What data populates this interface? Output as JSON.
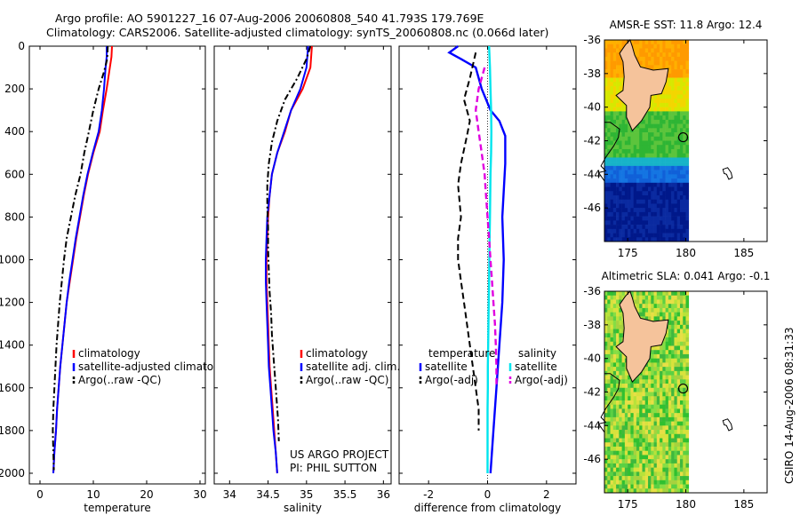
{
  "header": {
    "line1": "Argo profile: AO 5901227_16 07-Aug-2006 20060808_540 41.793S 179.769E",
    "line2": "Climatology: CARS2006. Satellite-adjusted climatology: synTS_20060808.nc (0.066d later)"
  },
  "footer": {
    "project": "US ARGO PROJECT",
    "pi": "PI: PHIL SUTTON"
  },
  "side_label": "CSIRO 14-Aug-2006 08:31:33",
  "colors": {
    "climatology": "#ff0000",
    "satellite": "#0000ff",
    "argo": "#000000",
    "sat_salinity": "#00e5ee",
    "argo_salinity": "#e000e0",
    "land": "#f5c39b"
  },
  "chart_data": [
    {
      "type": "line",
      "xlabel": "temperature",
      "xlim": [
        -2,
        31
      ],
      "ylim": [
        0,
        2050
      ],
      "y_reversed": true,
      "xticks": [
        0,
        10,
        20,
        30
      ],
      "yticks": [
        0,
        200,
        400,
        600,
        800,
        1000,
        1200,
        1400,
        1600,
        1800,
        2000
      ],
      "legend_location": "lower-right",
      "series": [
        {
          "name": "climatology",
          "color": "#ff0000",
          "dash": "solid",
          "points": [
            [
              13.5,
              0
            ],
            [
              13.4,
              50
            ],
            [
              13.1,
              100
            ],
            [
              12.5,
              200
            ],
            [
              11.8,
              300
            ],
            [
              11.2,
              400
            ],
            [
              10.0,
              500
            ],
            [
              9.0,
              600
            ],
            [
              8.2,
              700
            ],
            [
              7.5,
              800
            ],
            [
              6.8,
              900
            ],
            [
              6.2,
              1000
            ],
            [
              5.6,
              1100
            ],
            [
              5.0,
              1200
            ],
            [
              4.6,
              1300
            ],
            [
              4.2,
              1400
            ],
            [
              3.8,
              1500
            ],
            [
              3.5,
              1600
            ],
            [
              3.2,
              1700
            ],
            [
              3.0,
              1800
            ],
            [
              2.7,
              1900
            ],
            [
              2.5,
              2000
            ]
          ]
        },
        {
          "name": "satellite-adjusted climatology",
          "color": "#0000ff",
          "dash": "solid",
          "points": [
            [
              12.5,
              0
            ],
            [
              12.5,
              50
            ],
            [
              12.3,
              100
            ],
            [
              12.0,
              200
            ],
            [
              11.6,
              300
            ],
            [
              11.0,
              400
            ],
            [
              9.9,
              500
            ],
            [
              8.9,
              600
            ],
            [
              8.1,
              700
            ],
            [
              7.4,
              800
            ],
            [
              6.7,
              900
            ],
            [
              6.1,
              1000
            ],
            [
              5.5,
              1100
            ],
            [
              5.0,
              1200
            ],
            [
              4.6,
              1300
            ],
            [
              4.2,
              1400
            ],
            [
              3.8,
              1500
            ],
            [
              3.5,
              1600
            ],
            [
              3.2,
              1700
            ],
            [
              3.0,
              1800
            ],
            [
              2.7,
              1900
            ],
            [
              2.5,
              2000
            ]
          ]
        },
        {
          "name": "Argo(..raw -QC)",
          "color": "#000000",
          "dash": "dashdot",
          "points": [
            [
              12.7,
              0
            ],
            [
              12.6,
              60
            ],
            [
              12.0,
              120
            ],
            [
              11.0,
              200
            ],
            [
              10.0,
              300
            ],
            [
              9.0,
              420
            ],
            [
              8.3,
              500
            ],
            [
              7.6,
              600
            ],
            [
              6.6,
              700
            ],
            [
              5.8,
              800
            ],
            [
              5.0,
              900
            ],
            [
              4.5,
              1000
            ],
            [
              4.1,
              1100
            ],
            [
              3.7,
              1200
            ],
            [
              3.4,
              1300
            ],
            [
              3.1,
              1400
            ],
            [
              2.9,
              1500
            ],
            [
              2.7,
              1600
            ],
            [
              2.5,
              1700
            ],
            [
              2.4,
              1800
            ],
            [
              2.5,
              1900
            ],
            [
              2.6,
              1985
            ]
          ]
        }
      ]
    },
    {
      "type": "line",
      "xlabel": "salinity",
      "xlim": [
        33.8,
        36.1
      ],
      "ylim": [
        0,
        2050
      ],
      "y_reversed": true,
      "xticks": [
        34,
        34.5,
        35,
        35.5,
        36
      ],
      "yticks": [],
      "legend_location": "lower-right",
      "series": [
        {
          "name": "climatology",
          "color": "#ff0000",
          "dash": "solid",
          "points": [
            [
              35.07,
              0
            ],
            [
              35.05,
              100
            ],
            [
              34.95,
              200
            ],
            [
              34.8,
              300
            ],
            [
              34.72,
              400
            ],
            [
              34.62,
              500
            ],
            [
              34.55,
              600
            ],
            [
              34.52,
              700
            ],
            [
              34.5,
              800
            ],
            [
              34.49,
              900
            ],
            [
              34.48,
              1000
            ],
            [
              34.48,
              1100
            ],
            [
              34.49,
              1200
            ],
            [
              34.5,
              1300
            ],
            [
              34.51,
              1400
            ],
            [
              34.52,
              1500
            ],
            [
              34.54,
              1600
            ],
            [
              34.56,
              1700
            ],
            [
              34.58,
              1800
            ],
            [
              34.6,
              1900
            ],
            [
              34.62,
              2000
            ]
          ]
        },
        {
          "name": "satellite adj. clim.",
          "color": "#0000ff",
          "dash": "solid",
          "points": [
            [
              35.02,
              0
            ],
            [
              35.0,
              100
            ],
            [
              34.92,
              200
            ],
            [
              34.8,
              300
            ],
            [
              34.71,
              400
            ],
            [
              34.62,
              500
            ],
            [
              34.55,
              600
            ],
            [
              34.52,
              700
            ],
            [
              34.49,
              800
            ],
            [
              34.48,
              900
            ],
            [
              34.47,
              1000
            ],
            [
              34.47,
              1100
            ],
            [
              34.48,
              1200
            ],
            [
              34.49,
              1300
            ],
            [
              34.5,
              1400
            ],
            [
              34.51,
              1500
            ],
            [
              34.53,
              1600
            ],
            [
              34.55,
              1700
            ],
            [
              34.57,
              1800
            ],
            [
              34.6,
              1900
            ],
            [
              34.62,
              2000
            ]
          ]
        },
        {
          "name": "Argo(..raw -QC)",
          "color": "#000000",
          "dash": "dashdot",
          "points": [
            [
              35.05,
              0
            ],
            [
              35.0,
              60
            ],
            [
              34.88,
              150
            ],
            [
              34.72,
              250
            ],
            [
              34.62,
              350
            ],
            [
              34.55,
              450
            ],
            [
              34.51,
              550
            ],
            [
              34.49,
              650
            ],
            [
              34.49,
              750
            ],
            [
              34.5,
              850
            ],
            [
              34.5,
              950
            ],
            [
              34.51,
              1050
            ],
            [
              34.52,
              1150
            ],
            [
              34.54,
              1250
            ],
            [
              34.55,
              1350
            ],
            [
              34.57,
              1450
            ],
            [
              34.59,
              1550
            ],
            [
              34.61,
              1650
            ],
            [
              34.63,
              1750
            ],
            [
              34.64,
              1850
            ]
          ]
        }
      ]
    },
    {
      "type": "line",
      "xlabel": "difference from climatology",
      "xlim": [
        -3,
        3
      ],
      "ylim": [
        0,
        2050
      ],
      "y_reversed": true,
      "xticks": [
        -2,
        0,
        2
      ],
      "yticks": [],
      "legend_groups": [
        {
          "title": "temperature",
          "items": [
            "satellite",
            "Argo(-adj)"
          ]
        },
        {
          "title": "salinity",
          "items": [
            "satellite",
            "Argo(-adj)"
          ]
        }
      ],
      "series": [
        {
          "name": "temperature satellite",
          "color": "#0000ff",
          "dash": "solid",
          "points": [
            [
              -1.0,
              0
            ],
            [
              -1.3,
              30
            ],
            [
              -0.9,
              60
            ],
            [
              -0.4,
              100
            ],
            [
              -0.2,
              200
            ],
            [
              0.1,
              300
            ],
            [
              0.4,
              350
            ],
            [
              0.6,
              420
            ],
            [
              0.6,
              550
            ],
            [
              0.5,
              800
            ],
            [
              0.55,
              1000
            ],
            [
              0.5,
              1200
            ],
            [
              0.4,
              1400
            ],
            [
              0.3,
              1600
            ],
            [
              0.2,
              1800
            ],
            [
              0.1,
              2000
            ]
          ]
        },
        {
          "name": "temperature Argo(-adj)",
          "color": "#000000",
          "dash": "dashed",
          "points": [
            [
              -0.4,
              30
            ],
            [
              -0.6,
              150
            ],
            [
              -0.8,
              250
            ],
            [
              -0.6,
              350
            ],
            [
              -0.7,
              420
            ],
            [
              -0.9,
              550
            ],
            [
              -1.0,
              650
            ],
            [
              -0.9,
              800
            ],
            [
              -1.0,
              900
            ],
            [
              -1.0,
              1000
            ],
            [
              -0.9,
              1100
            ],
            [
              -0.8,
              1200
            ],
            [
              -0.7,
              1300
            ],
            [
              -0.6,
              1400
            ],
            [
              -0.5,
              1500
            ],
            [
              -0.4,
              1600
            ],
            [
              -0.3,
              1700
            ],
            [
              -0.3,
              1800
            ]
          ]
        },
        {
          "name": "salinity satellite",
          "color": "#00e5ee",
          "dash": "solid",
          "points": [
            [
              0.05,
              0
            ],
            [
              0.08,
              100
            ],
            [
              0.1,
              200
            ],
            [
              0.12,
              300
            ],
            [
              0.13,
              400
            ],
            [
              0.12,
              500
            ],
            [
              0.1,
              600
            ],
            [
              0.09,
              700
            ],
            [
              0.08,
              800
            ],
            [
              0.07,
              900
            ],
            [
              0.06,
              1000
            ],
            [
              0.05,
              1100
            ],
            [
              0.04,
              1200
            ],
            [
              0.03,
              1300
            ],
            [
              0.02,
              1400
            ],
            [
              0.01,
              1500
            ],
            [
              0.01,
              1600
            ],
            [
              0.0,
              1700
            ],
            [
              0.0,
              1800
            ],
            [
              0.0,
              1900
            ],
            [
              0.0,
              2000
            ]
          ]
        },
        {
          "name": "salinity Argo(-adj)",
          "color": "#e000e0",
          "dash": "dashed",
          "points": [
            [
              -0.1,
              100
            ],
            [
              -0.3,
              200
            ],
            [
              -0.4,
              300
            ],
            [
              -0.3,
              400
            ],
            [
              -0.2,
              500
            ],
            [
              -0.1,
              600
            ],
            [
              -0.05,
              700
            ],
            [
              0.0,
              800
            ],
            [
              0.05,
              900
            ],
            [
              0.1,
              1000
            ],
            [
              0.15,
              1100
            ],
            [
              0.2,
              1200
            ],
            [
              0.25,
              1300
            ],
            [
              0.28,
              1400
            ],
            [
              0.3,
              1500
            ],
            [
              0.3,
              1600
            ]
          ]
        }
      ]
    },
    {
      "type": "heatmap",
      "title": "AMSR-E SST: 11.8 Argo: 12.4",
      "xlim": [
        173,
        187
      ],
      "ylim": [
        -48,
        -36
      ],
      "xticks": [
        175,
        180,
        185
      ],
      "yticks": [
        -36,
        -38,
        -40,
        -42,
        -44,
        -46
      ],
      "data_extent_lon": [
        173,
        180.2
      ],
      "float_position": [
        179.769,
        -41.793
      ]
    },
    {
      "type": "heatmap",
      "title": "Altimetric SLA: 0.041 Argo: -0.1",
      "xlim": [
        173,
        187
      ],
      "ylim": [
        -48,
        -36
      ],
      "xticks": [
        175,
        180,
        185
      ],
      "yticks": [
        -36,
        -38,
        -40,
        -42,
        -44,
        -46
      ],
      "data_extent_lon": [
        173,
        180.2
      ],
      "float_position": [
        179.769,
        -41.793
      ]
    }
  ]
}
